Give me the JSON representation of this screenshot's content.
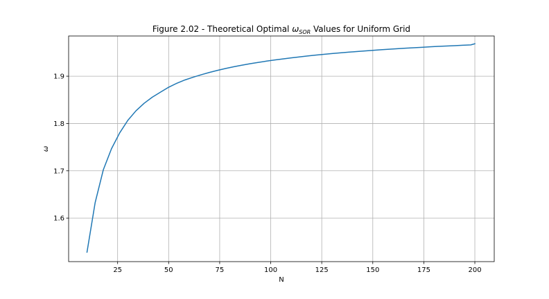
{
  "chart_data": {
    "type": "line",
    "title_main": "Figure 2.02 - Theoretical Optimal ",
    "title_symbol": "ω",
    "title_subscript": "SOR",
    "title_tail": " Values for Uniform Grid",
    "xlabel": "N",
    "ylabel": "ω",
    "xlim": [
      1,
      209.5
    ],
    "ylim": [
      1.508,
      1.985
    ],
    "xticks": [
      25,
      50,
      75,
      100,
      125,
      150,
      175,
      200
    ],
    "xtick_labels": [
      "25",
      "50",
      "75",
      "100",
      "125",
      "150",
      "175",
      "200"
    ],
    "yticks": [
      1.6,
      1.7,
      1.8,
      1.9
    ],
    "ytick_labels": [
      "1.6",
      "1.7",
      "1.8",
      "1.9"
    ],
    "grid": true,
    "line_color": "#1f77b4",
    "series": [
      {
        "x": [
          10,
          14,
          18,
          22,
          26,
          30,
          34,
          38,
          42,
          46,
          50,
          54,
          58,
          62,
          66,
          70,
          74,
          78,
          82,
          86,
          90,
          94,
          98,
          102,
          106,
          110,
          114,
          118,
          122,
          126,
          130,
          134,
          138,
          142,
          146,
          150,
          154,
          158,
          162,
          166,
          170,
          174,
          178,
          182,
          186,
          190,
          194,
          198,
          200
        ],
        "y": [
          1.5279,
          1.6329,
          1.7022,
          1.7467,
          1.7801,
          1.8067,
          1.8269,
          1.8428,
          1.8557,
          1.8663,
          1.8767,
          1.8851,
          1.8921,
          1.8979,
          1.9032,
          1.908,
          1.9124,
          1.9164,
          1.92,
          1.9233,
          1.9264,
          1.9292,
          1.9319,
          1.9343,
          1.9366,
          1.9388,
          1.9408,
          1.9427,
          1.9445,
          1.9462,
          1.9478,
          1.9493,
          1.9508,
          1.9521,
          1.9534,
          1.9547,
          1.9559,
          1.957,
          1.9581,
          1.9592,
          1.9602,
          1.9611,
          1.9621,
          1.963,
          1.9638,
          1.9646,
          1.9654,
          1.9662,
          1.9686
        ]
      }
    ]
  }
}
